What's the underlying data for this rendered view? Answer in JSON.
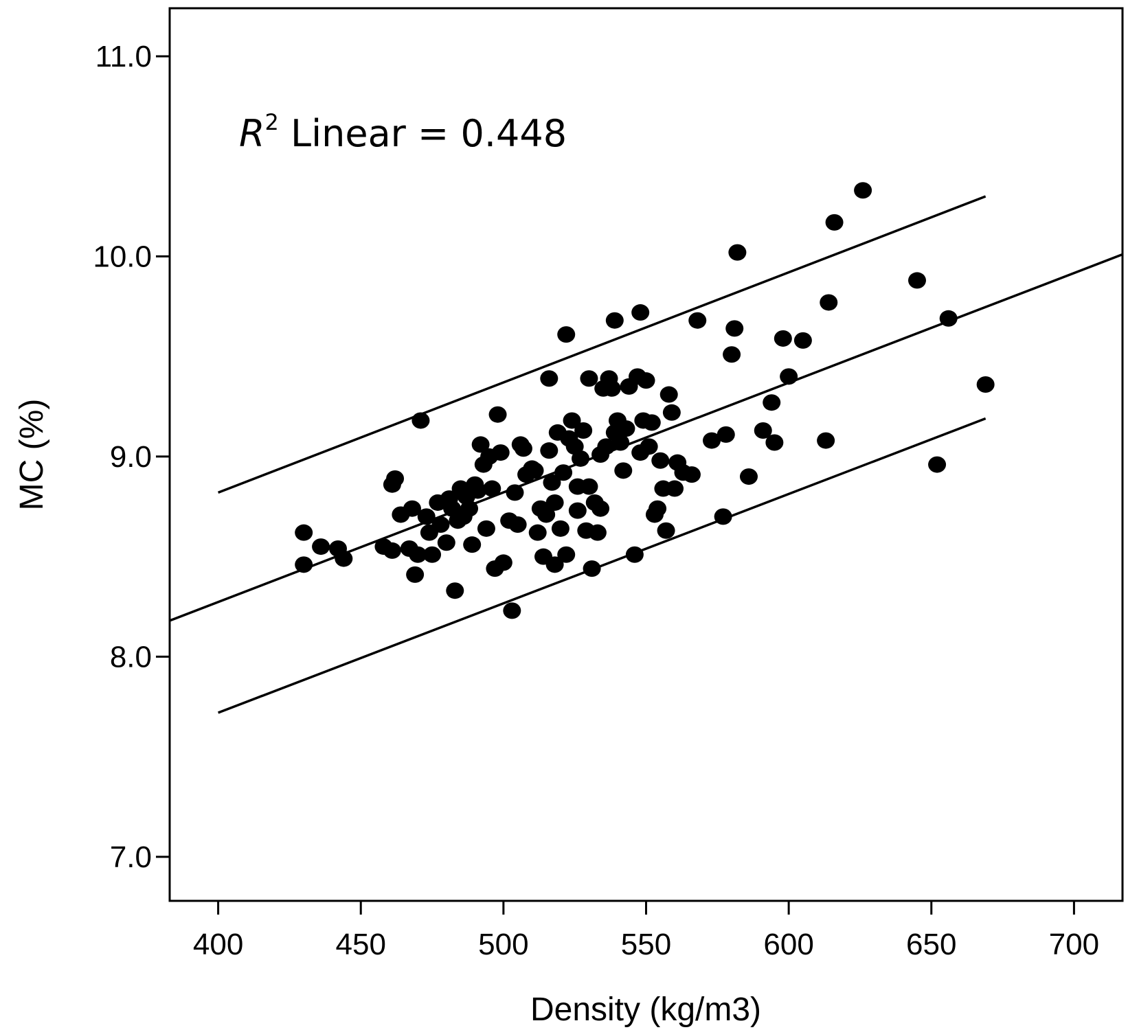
{
  "chart_data": {
    "type": "scatter",
    "title": "",
    "xlabel": "Density (kg/m3)",
    "ylabel": "MC (%)",
    "xlim": [
      383,
      717
    ],
    "ylim": [
      6.78,
      11.24
    ],
    "x_ticks": [
      400,
      450,
      500,
      550,
      600,
      650,
      700
    ],
    "y_ticks": [
      7.0,
      8.0,
      9.0,
      10.0,
      11.0
    ],
    "x_tick_labels": [
      "400",
      "450",
      "500",
      "550",
      "600",
      "650",
      "700"
    ],
    "y_tick_labels": [
      "7.0",
      "8.0",
      "9.0",
      "10.0",
      "11.0"
    ],
    "annotation": {
      "symbol": "R",
      "superscript": "2",
      "text": " Linear = 0.448"
    },
    "grid": false,
    "fit_lines": [
      {
        "name": "upper",
        "x": [
          400,
          669
        ],
        "y": [
          8.82,
          10.3
        ]
      },
      {
        "name": "linear fit",
        "x": [
          383,
          717
        ],
        "y": [
          8.18,
          10.01
        ]
      },
      {
        "name": "lower",
        "x": [
          400,
          669
        ],
        "y": [
          7.72,
          9.19
        ]
      }
    ],
    "points": [
      [
        430,
        8.62
      ],
      [
        430,
        8.46
      ],
      [
        436,
        8.55
      ],
      [
        442,
        8.54
      ],
      [
        444,
        8.49
      ],
      [
        458,
        8.55
      ],
      [
        461,
        8.53
      ],
      [
        461,
        8.86
      ],
      [
        462,
        8.89
      ],
      [
        464,
        8.71
      ],
      [
        467,
        8.54
      ],
      [
        468,
        8.74
      ],
      [
        469,
        8.41
      ],
      [
        470,
        8.51
      ],
      [
        471,
        9.18
      ],
      [
        473,
        8.7
      ],
      [
        474,
        8.62
      ],
      [
        475,
        8.51
      ],
      [
        477,
        8.77
      ],
      [
        478,
        8.66
      ],
      [
        480,
        8.57
      ],
      [
        481,
        8.79
      ],
      [
        482,
        8.74
      ],
      [
        483,
        8.33
      ],
      [
        484,
        8.68
      ],
      [
        485,
        8.84
      ],
      [
        486,
        8.7
      ],
      [
        487,
        8.8
      ],
      [
        488,
        8.74
      ],
      [
        489,
        8.56
      ],
      [
        490,
        8.86
      ],
      [
        491,
        8.83
      ],
      [
        492,
        9.06
      ],
      [
        493,
        8.96
      ],
      [
        494,
        8.64
      ],
      [
        495,
        9.0
      ],
      [
        496,
        8.84
      ],
      [
        497,
        8.44
      ],
      [
        498,
        9.21
      ],
      [
        499,
        9.02
      ],
      [
        500,
        8.47
      ],
      [
        502,
        8.68
      ],
      [
        503,
        8.23
      ],
      [
        504,
        8.82
      ],
      [
        505,
        8.66
      ],
      [
        506,
        9.06
      ],
      [
        507,
        9.04
      ],
      [
        508,
        8.91
      ],
      [
        510,
        8.94
      ],
      [
        511,
        8.93
      ],
      [
        512,
        8.62
      ],
      [
        513,
        8.74
      ],
      [
        514,
        8.5
      ],
      [
        515,
        8.71
      ],
      [
        516,
        9.39
      ],
      [
        516,
        9.03
      ],
      [
        517,
        8.87
      ],
      [
        518,
        8.77
      ],
      [
        518,
        8.46
      ],
      [
        519,
        9.12
      ],
      [
        520,
        8.64
      ],
      [
        521,
        8.92
      ],
      [
        522,
        8.51
      ],
      [
        522,
        9.61
      ],
      [
        523,
        9.09
      ],
      [
        524,
        9.18
      ],
      [
        525,
        9.05
      ],
      [
        526,
        8.73
      ],
      [
        526,
        8.85
      ],
      [
        527,
        8.99
      ],
      [
        528,
        9.13
      ],
      [
        529,
        8.63
      ],
      [
        530,
        9.39
      ],
      [
        530,
        8.85
      ],
      [
        531,
        8.44
      ],
      [
        532,
        8.77
      ],
      [
        533,
        8.62
      ],
      [
        534,
        9.01
      ],
      [
        534,
        8.74
      ],
      [
        535,
        9.34
      ],
      [
        536,
        9.05
      ],
      [
        537,
        9.39
      ],
      [
        538,
        9.34
      ],
      [
        539,
        9.68
      ],
      [
        539,
        9.12
      ],
      [
        540,
        9.18
      ],
      [
        541,
        9.07
      ],
      [
        542,
        8.93
      ],
      [
        543,
        9.14
      ],
      [
        544,
        9.35
      ],
      [
        546,
        8.51
      ],
      [
        547,
        9.4
      ],
      [
        548,
        9.72
      ],
      [
        548,
        9.02
      ],
      [
        549,
        9.18
      ],
      [
        550,
        9.38
      ],
      [
        551,
        9.05
      ],
      [
        552,
        9.17
      ],
      [
        553,
        8.71
      ],
      [
        554,
        8.74
      ],
      [
        555,
        8.98
      ],
      [
        556,
        8.84
      ],
      [
        557,
        8.63
      ],
      [
        558,
        9.31
      ],
      [
        559,
        9.22
      ],
      [
        560,
        8.84
      ],
      [
        561,
        8.97
      ],
      [
        563,
        8.92
      ],
      [
        566,
        8.91
      ],
      [
        568,
        9.68
      ],
      [
        573,
        9.08
      ],
      [
        577,
        8.7
      ],
      [
        578,
        9.11
      ],
      [
        580,
        9.51
      ],
      [
        581,
        9.64
      ],
      [
        582,
        10.02
      ],
      [
        586,
        8.9
      ],
      [
        591,
        9.13
      ],
      [
        594,
        9.27
      ],
      [
        595,
        9.07
      ],
      [
        598,
        9.59
      ],
      [
        600,
        9.4
      ],
      [
        605,
        9.58
      ],
      [
        613,
        9.08
      ],
      [
        614,
        9.77
      ],
      [
        616,
        10.17
      ],
      [
        626,
        10.33
      ],
      [
        645,
        9.88
      ],
      [
        652,
        8.96
      ],
      [
        656,
        9.69
      ],
      [
        669,
        9.36
      ]
    ]
  }
}
